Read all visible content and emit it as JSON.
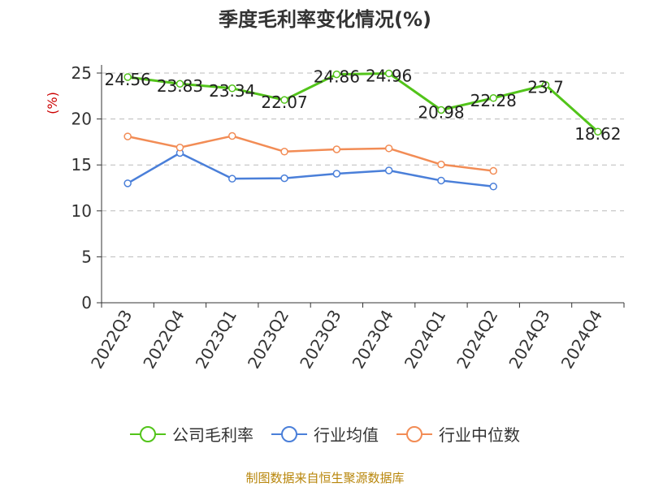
{
  "chart_data": {
    "type": "line",
    "title": "季度毛利率变化情况(%)",
    "ylabel": "(%)",
    "xlabel": "",
    "ylim": [
      0,
      25
    ],
    "yticks": [
      0,
      5,
      10,
      15,
      20,
      25
    ],
    "grid": true,
    "legend_position": "bottom",
    "categories": [
      "2022Q3",
      "2022Q4",
      "2023Q1",
      "2023Q2",
      "2023Q3",
      "2023Q4",
      "2024Q1",
      "2024Q2",
      "2024Q3",
      "2024Q4"
    ],
    "series": [
      {
        "name": "公司毛利率",
        "color": "#52c41a",
        "values": [
          24.56,
          23.83,
          23.34,
          22.07,
          24.86,
          24.96,
          20.98,
          22.28,
          23.7,
          18.62
        ],
        "labels": [
          "24.56",
          "23.83",
          "23.34",
          "22.07",
          "24.86",
          "24.96",
          "20.98",
          "22.28",
          "23.7",
          "18.62"
        ]
      },
      {
        "name": "行业均值",
        "color": "#4a7fd9",
        "values": [
          13.0,
          16.3,
          13.5,
          13.55,
          14.05,
          14.4,
          13.3,
          12.65,
          null,
          null
        ]
      },
      {
        "name": "行业中位数",
        "color": "#f28c55",
        "values": [
          18.1,
          16.9,
          18.15,
          16.45,
          16.7,
          16.8,
          15.05,
          14.35,
          null,
          null
        ]
      }
    ],
    "source": "制图数据来自恒生聚源数据库"
  }
}
